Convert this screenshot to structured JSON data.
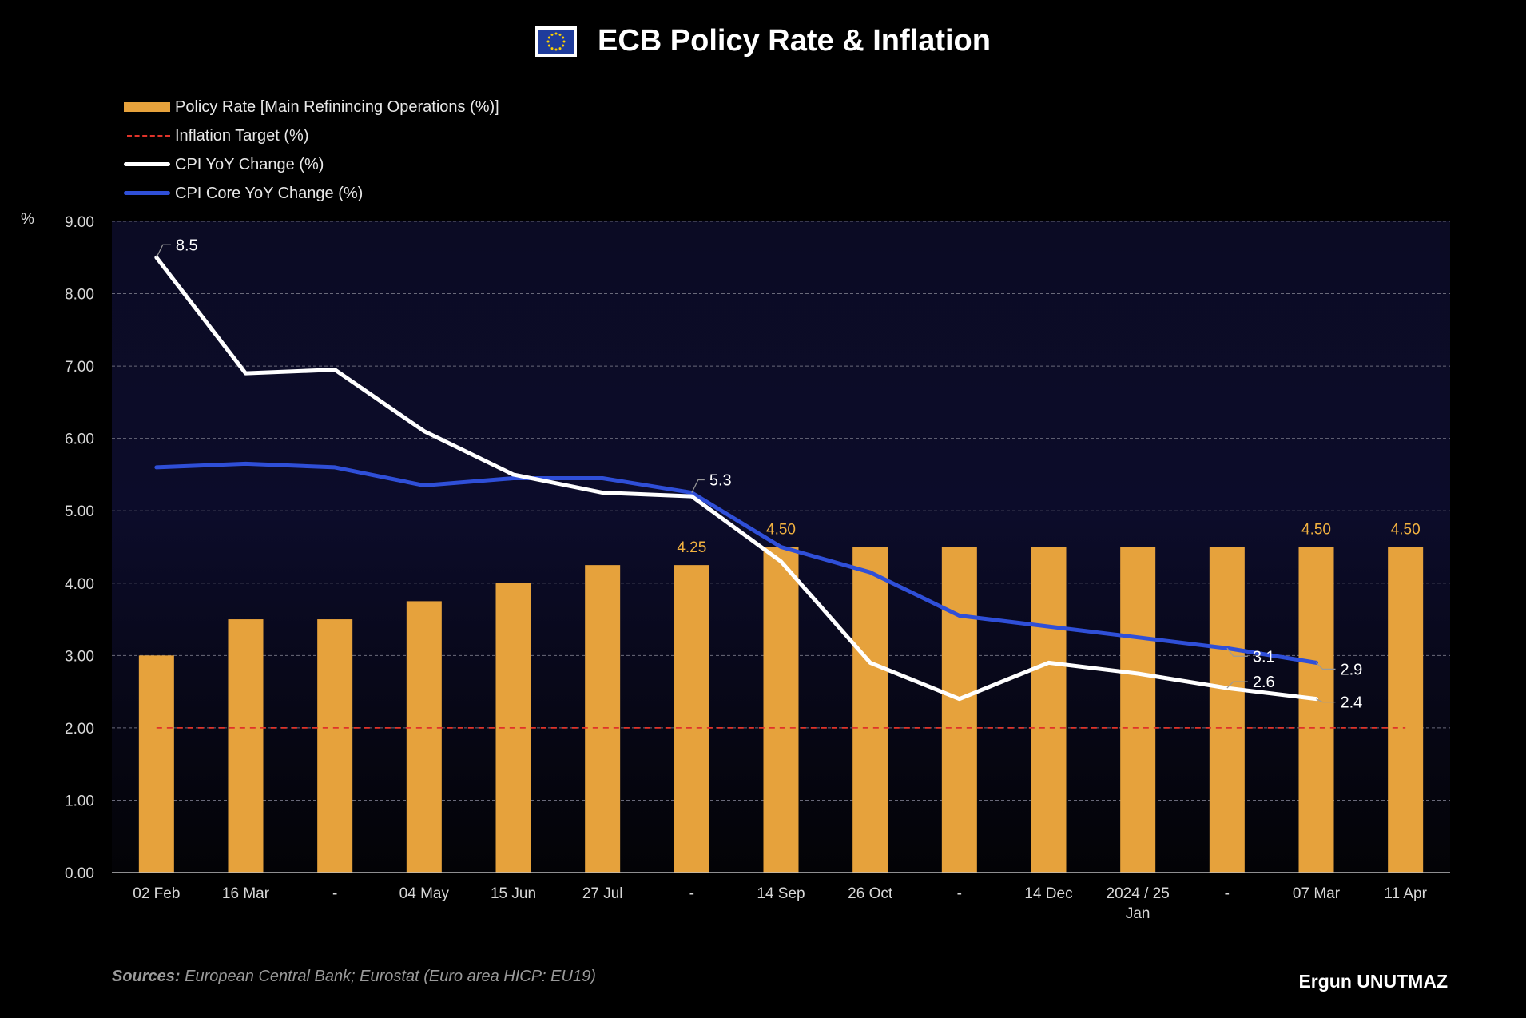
{
  "header": {
    "title": "ECB Policy Rate & Inflation",
    "flag_icon": "eu-flag-icon"
  },
  "legend": {
    "policy_rate": "Policy Rate [Main Refinincing Operations (%)]",
    "inflation_target": "Inflation Target (%)",
    "cpi": "CPI YoY Change (%)",
    "cpi_core": "CPI Core YoY Change (%)"
  },
  "footer": {
    "sources_label": "Sources:",
    "sources_text": " European Central Bank; Eurostat (Euro area HICP: EU19)",
    "author": "Ergun UNUTMAZ"
  },
  "colors": {
    "background": "#000000",
    "plot_top": "#0b0b22",
    "plot_bottom": "#050509",
    "bar": "#E6A23C",
    "cpi": "#FFFFFF",
    "core": "#2F4FD8",
    "target": "#E0332A",
    "grid": "#6a6a7a"
  },
  "chart_data": {
    "type": "bar",
    "ylabel": "%",
    "ylim": [
      0,
      9
    ],
    "yticks": [
      "0.00",
      "1.00",
      "2.00",
      "3.00",
      "4.00",
      "5.00",
      "6.00",
      "7.00",
      "8.00",
      "9.00"
    ],
    "grid": true,
    "legend_position": "top-left",
    "categories": [
      "02 Feb",
      "16 Mar",
      "-",
      "04 May",
      "15 Jun",
      "27 Jul",
      "-",
      "14 Sep",
      "26 Oct",
      "-",
      "14 Dec",
      "2024 / 25 Jan",
      "-",
      "07 Mar",
      "11 Apr"
    ],
    "series": [
      {
        "name": "Policy Rate [Main Refinincing Operations (%)]",
        "kind": "bar",
        "values": [
          3.0,
          3.5,
          3.5,
          3.75,
          4.0,
          4.25,
          4.25,
          4.5,
          4.5,
          4.5,
          4.5,
          4.5,
          4.5,
          4.5,
          4.5
        ]
      },
      {
        "name": "Inflation Target (%)",
        "kind": "dashed-line",
        "value": 2.0
      },
      {
        "name": "CPI YoY Change (%)",
        "kind": "line",
        "values": [
          8.5,
          6.9,
          6.95,
          6.1,
          5.5,
          5.25,
          5.2,
          4.3,
          2.9,
          2.4,
          2.9,
          2.75,
          2.55,
          2.4,
          null
        ]
      },
      {
        "name": "CPI Core YoY Change (%)",
        "kind": "line",
        "values": [
          5.6,
          5.65,
          5.6,
          5.35,
          5.45,
          5.45,
          5.25,
          4.5,
          4.15,
          3.55,
          3.4,
          3.25,
          3.1,
          2.9,
          null
        ]
      }
    ],
    "bar_labels": [
      {
        "index": 6,
        "text": "4.25"
      },
      {
        "index": 7,
        "text": "4.50"
      },
      {
        "index": 13,
        "text": "4.50"
      },
      {
        "index": 14,
        "text": "4.50"
      }
    ],
    "line_labels": [
      {
        "series": 2,
        "index": 0,
        "text": "8.5"
      },
      {
        "series": 3,
        "index": 6,
        "text": "5.3"
      },
      {
        "series": 3,
        "index": 12,
        "text": "3.1"
      },
      {
        "series": 2,
        "index": 12,
        "text": "2.6"
      },
      {
        "series": 3,
        "index": 13,
        "text": "2.9"
      },
      {
        "series": 2,
        "index": 13,
        "text": "2.4"
      }
    ]
  }
}
